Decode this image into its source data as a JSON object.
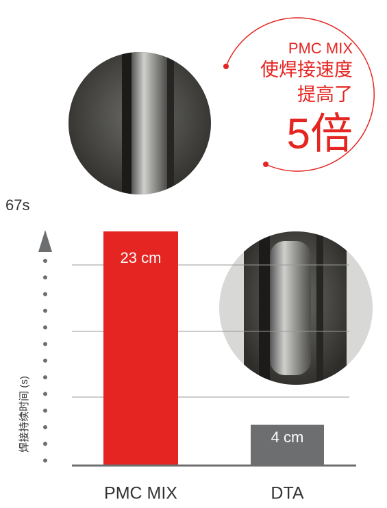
{
  "chart_data": {
    "type": "bar",
    "axis_top_label": "67s",
    "y_axis_label": "焊接持续时间 (s)",
    "categories": [
      "PMC MIX",
      "DTA"
    ],
    "values": [
      23,
      4
    ],
    "value_labels": [
      "23 cm",
      "4 cm"
    ],
    "colors": [
      "#e52521",
      "#6d6e70"
    ],
    "ylim": [
      0,
      23
    ],
    "callout": [
      "PMC MIX",
      "使焊接速度",
      "提高了",
      "5倍"
    ],
    "callout_color": "#e52521"
  }
}
